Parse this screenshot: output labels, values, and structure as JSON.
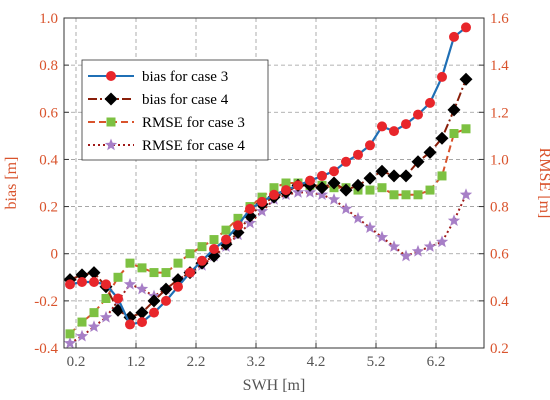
{
  "chart_data": {
    "type": "line",
    "xlabel": "SWH [m]",
    "ylabel_left": "bias [m]",
    "ylabel_right": "RMSE [m]",
    "xlim": [
      0,
      7
    ],
    "ylim_left": [
      -0.4,
      1.0
    ],
    "ylim_right": [
      0.2,
      1.6
    ],
    "xticks": [
      "0.2",
      "1.2",
      "2.2",
      "3.2",
      "4.2",
      "5.2",
      "6.2"
    ],
    "xtick_values": [
      0.2,
      1.2,
      2.2,
      3.2,
      4.2,
      5.2,
      6.2
    ],
    "yticks_left": [
      "-0.4",
      "-0.2",
      "0",
      "0.2",
      "0.4",
      "0.6",
      "0.8",
      "1.0"
    ],
    "ytick_values_left": [
      -0.4,
      -0.2,
      0,
      0.2,
      0.4,
      0.6,
      0.8,
      1.0
    ],
    "yticks_right": [
      "0.2",
      "0.4",
      "0.6",
      "0.8",
      "1.0",
      "1.2",
      "1.4",
      "1.6"
    ],
    "ytick_values_right": [
      0.2,
      0.4,
      0.6,
      0.8,
      1.0,
      1.2,
      1.4,
      1.6
    ],
    "grid": true,
    "legend_position": "top-left",
    "series": [
      {
        "name": "bias for case 3",
        "axis": "left",
        "color": "#1f6fb5",
        "marker": "circle",
        "marker_color": "#e8262b",
        "line_style": "solid",
        "x": [
          0.1,
          0.3,
          0.5,
          0.7,
          0.9,
          1.1,
          1.3,
          1.5,
          1.7,
          1.9,
          2.1,
          2.3,
          2.5,
          2.7,
          2.9,
          3.1,
          3.3,
          3.5,
          3.7,
          3.9,
          4.1,
          4.3,
          4.5,
          4.7,
          4.9,
          5.1,
          5.3,
          5.5,
          5.7,
          5.9,
          6.1,
          6.3,
          6.5,
          6.7
        ],
        "values": [
          -0.13,
          -0.12,
          -0.12,
          -0.13,
          -0.19,
          -0.3,
          -0.29,
          -0.25,
          -0.2,
          -0.14,
          -0.08,
          -0.03,
          0.02,
          0.06,
          0.12,
          0.19,
          0.22,
          0.25,
          0.27,
          0.29,
          0.31,
          0.33,
          0.35,
          0.39,
          0.42,
          0.46,
          0.54,
          0.52,
          0.55,
          0.59,
          0.64,
          0.75,
          0.92,
          0.96
        ]
      },
      {
        "name": "bias for case 4",
        "axis": "left",
        "color": "#8a1f0a",
        "marker": "diamond",
        "marker_color": "#000000",
        "line_style": "dashdot",
        "x": [
          0.1,
          0.3,
          0.5,
          0.7,
          0.9,
          1.1,
          1.3,
          1.5,
          1.7,
          1.9,
          2.1,
          2.3,
          2.5,
          2.7,
          2.9,
          3.1,
          3.3,
          3.5,
          3.7,
          3.9,
          4.1,
          4.3,
          4.5,
          4.7,
          4.9,
          5.1,
          5.3,
          5.5,
          5.7,
          5.9,
          6.1,
          6.3,
          6.5,
          6.7
        ],
        "values": [
          -0.11,
          -0.09,
          -0.08,
          -0.14,
          -0.24,
          -0.27,
          -0.25,
          -0.2,
          -0.15,
          -0.11,
          -0.08,
          -0.04,
          -0.01,
          0.04,
          0.09,
          0.16,
          0.21,
          0.24,
          0.26,
          0.29,
          0.29,
          0.28,
          0.3,
          0.27,
          0.29,
          0.32,
          0.35,
          0.33,
          0.33,
          0.39,
          0.43,
          0.49,
          0.61,
          0.74
        ]
      },
      {
        "name": "RMSE for case 3",
        "axis": "right",
        "color": "#d9532c",
        "marker": "square",
        "marker_color": "#7dc142",
        "line_style": "dashed",
        "x": [
          0.1,
          0.3,
          0.5,
          0.7,
          0.9,
          1.1,
          1.3,
          1.5,
          1.7,
          1.9,
          2.1,
          2.3,
          2.5,
          2.7,
          2.9,
          3.1,
          3.3,
          3.5,
          3.7,
          3.9,
          4.1,
          4.3,
          4.5,
          4.7,
          4.9,
          5.1,
          5.3,
          5.5,
          5.7,
          5.9,
          6.1,
          6.3,
          6.5,
          6.7
        ],
        "values": [
          0.26,
          0.31,
          0.35,
          0.41,
          0.5,
          0.56,
          0.54,
          0.52,
          0.52,
          0.56,
          0.6,
          0.63,
          0.66,
          0.7,
          0.75,
          0.8,
          0.84,
          0.88,
          0.9,
          0.9,
          0.89,
          0.89,
          0.88,
          0.88,
          0.87,
          0.87,
          0.88,
          0.85,
          0.85,
          0.85,
          0.87,
          0.93,
          1.11,
          1.13
        ]
      },
      {
        "name": "RMSE for case 4",
        "axis": "right",
        "color": "#a01a1a",
        "marker": "star",
        "marker_color": "#a77fc7",
        "line_style": "dotted",
        "x": [
          0.1,
          0.3,
          0.5,
          0.7,
          0.9,
          1.1,
          1.3,
          1.5,
          1.7,
          1.9,
          2.1,
          2.3,
          2.5,
          2.7,
          2.9,
          3.1,
          3.3,
          3.5,
          3.7,
          3.9,
          4.1,
          4.3,
          4.5,
          4.7,
          4.9,
          5.1,
          5.3,
          5.5,
          5.7,
          5.9,
          6.1,
          6.3,
          6.5,
          6.7
        ],
        "values": [
          0.22,
          0.25,
          0.29,
          0.33,
          0.4,
          0.47,
          0.45,
          0.42,
          0.45,
          0.49,
          0.52,
          0.55,
          0.59,
          0.63,
          0.68,
          0.73,
          0.78,
          0.83,
          0.85,
          0.86,
          0.86,
          0.85,
          0.83,
          0.79,
          0.75,
          0.71,
          0.67,
          0.63,
          0.59,
          0.61,
          0.63,
          0.65,
          0.74,
          0.85
        ]
      }
    ]
  }
}
